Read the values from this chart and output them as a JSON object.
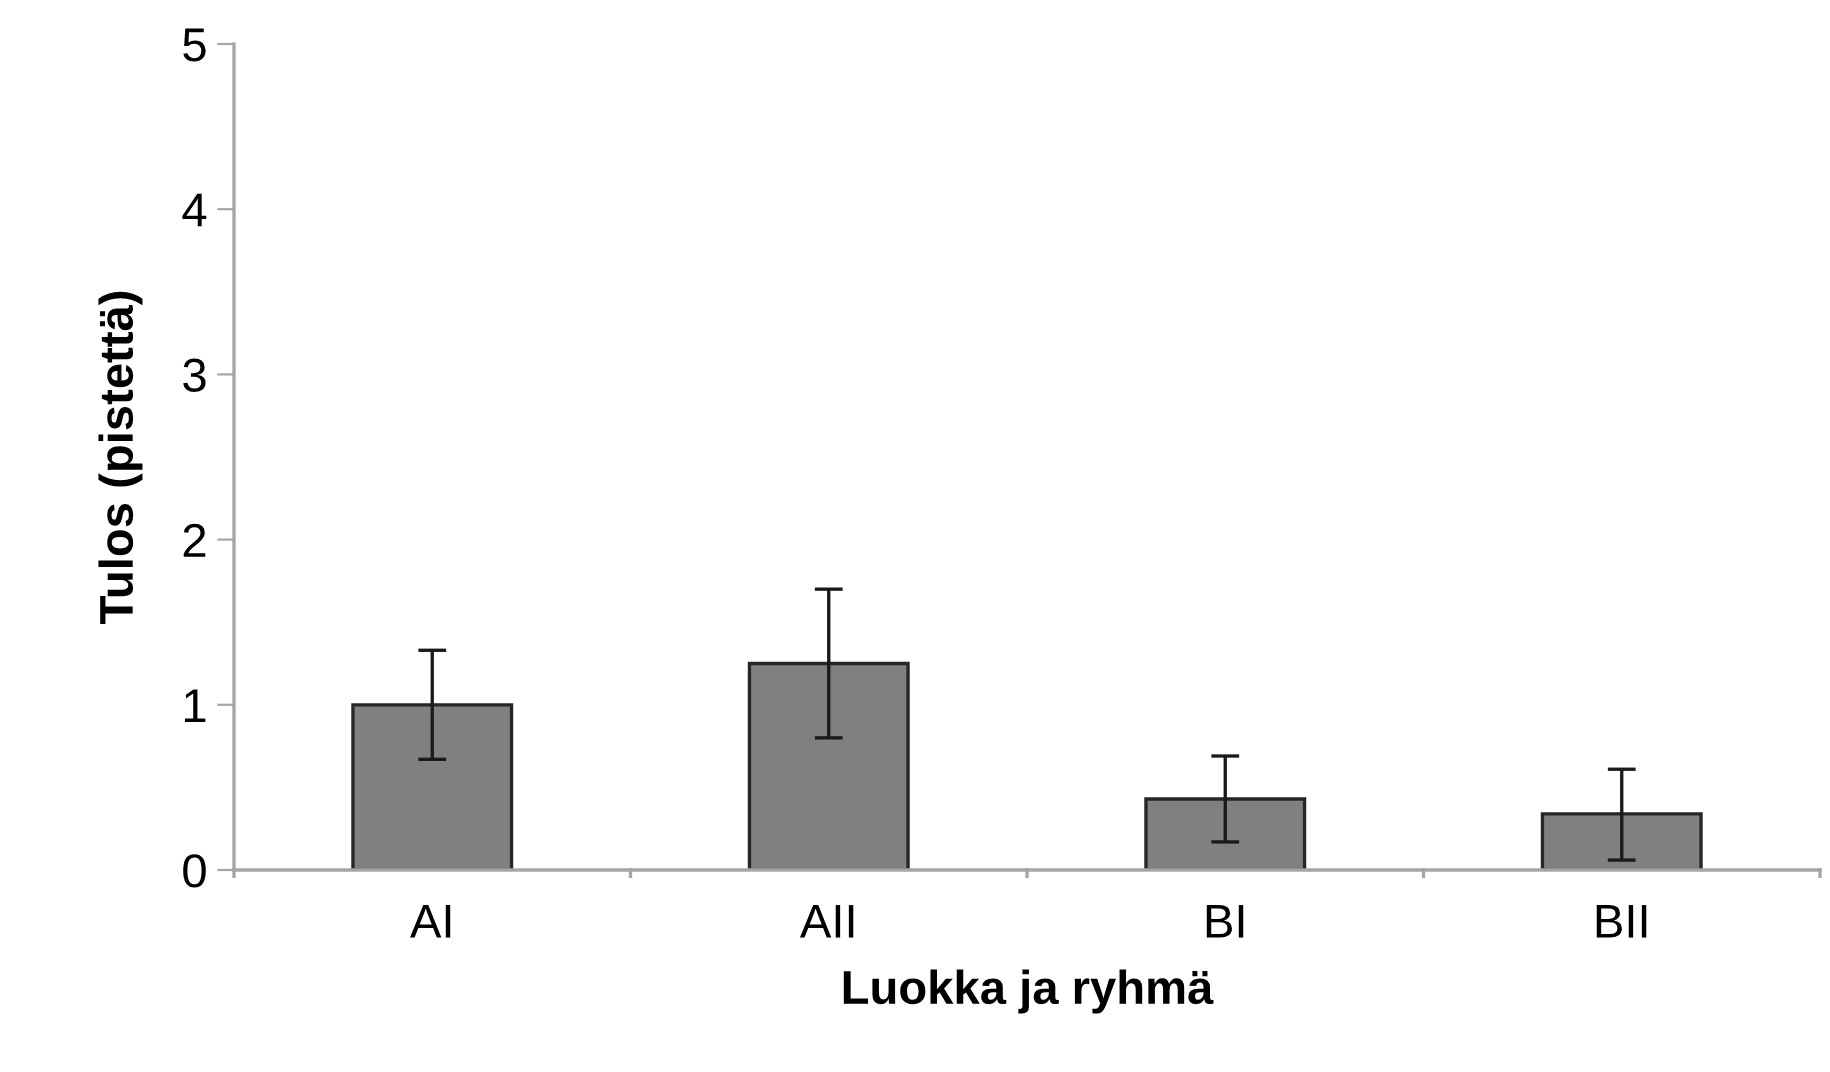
{
  "chart_data": {
    "type": "bar",
    "xlabel": "Luokka ja ryhmä",
    "ylabel": "Tulos (pistettä)",
    "categories": [
      "AI",
      "AII",
      "BI",
      "BII"
    ],
    "values": [
      1.0,
      1.25,
      0.43,
      0.34
    ],
    "errors": [
      [
        0.67,
        1.33
      ],
      [
        0.8,
        1.7
      ],
      [
        0.17,
        0.69
      ],
      [
        0.06,
        0.61
      ]
    ],
    "color": "#808080",
    "ylim": [
      0,
      5
    ],
    "yticks": [
      0,
      1,
      2,
      3,
      4,
      5
    ],
    "grid": false,
    "legend": false
  }
}
